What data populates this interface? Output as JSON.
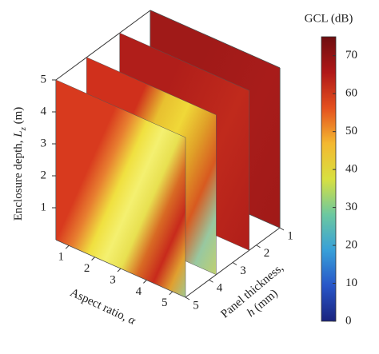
{
  "chart_data": {
    "type": "slice3d",
    "zlabel": {
      "text": "Enclosure depth, ",
      "var": "L",
      "sub": "z",
      "unit": " (m)"
    },
    "xlabel": {
      "text": "Aspect ratio, ",
      "var": "α"
    },
    "ylabel": {
      "line1": "Panel thickness,",
      "var": "h",
      "unit": " (mm)"
    },
    "xlim": [
      0.5,
      5.5
    ],
    "xticks": [
      1,
      2,
      3,
      4,
      5
    ],
    "ylim": [
      1,
      5
    ],
    "yticks": [
      1,
      2,
      3,
      4,
      5
    ],
    "zlim": [
      0,
      5
    ],
    "zticks": [
      1,
      2,
      3,
      4,
      5
    ],
    "slices": [
      {
        "h": 1,
        "colors": [
          "#a01a18",
          "#a81c1a",
          "#a01a18"
        ]
      },
      {
        "h": 2.3,
        "colors": [
          "#b01e1a",
          "#c02a1c",
          "#b01e1a"
        ]
      },
      {
        "h": 3.7,
        "colors": [
          "#d0301c",
          "#e8c030",
          "#f0d838",
          "#e0a028",
          "#d85a20",
          "#98c8a0",
          "#c0d070"
        ]
      },
      {
        "h": 5,
        "colors": [
          "#d83a1e",
          "#e88030",
          "#f0e040",
          "#f4f070",
          "#e8e050",
          "#d86a24",
          "#c82a1c",
          "#e0a030",
          "#a0c890"
        ]
      }
    ],
    "colorbar": {
      "label": "GCL (dB)",
      "clim": [
        0,
        75
      ],
      "ticks": [
        0,
        10,
        20,
        30,
        40,
        50,
        60,
        70
      ],
      "colormap": [
        "#1a237e",
        "#2856c8",
        "#38a0d8",
        "#6cc8a0",
        "#d8e040",
        "#f4b830",
        "#e4501e",
        "#b01818",
        "#6e0e10"
      ]
    }
  }
}
